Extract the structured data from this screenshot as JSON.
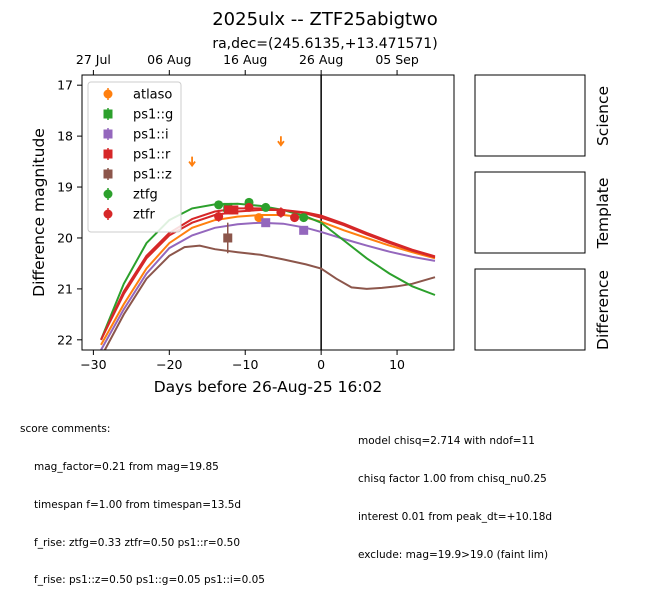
{
  "title": "2025ulx -- ZTF25abigtwo",
  "subtitle": "ra,dec=(245.6135,+13.471571)",
  "panels": {
    "science": "Science",
    "template": "Template",
    "difference": "Difference"
  },
  "chart_data": {
    "type": "scatter",
    "xlabel": "Days before 26-Aug-25 16:02",
    "ylabel": "Difference magnitude",
    "xlim": [
      -31.5,
      17.5
    ],
    "ylim": [
      22.2,
      16.8
    ],
    "y_inverted": true,
    "x_ticks": [
      -30,
      -20,
      -10,
      0,
      10
    ],
    "y_ticks": [
      17,
      18,
      19,
      20,
      21,
      22
    ],
    "top_axis_ticks": [
      {
        "label": "27 Jul",
        "x": -30
      },
      {
        "label": "06 Aug",
        "x": -20
      },
      {
        "label": "16 Aug",
        "x": -10
      },
      {
        "label": "26 Aug",
        "x": 0
      },
      {
        "label": "05 Sep",
        "x": 10
      }
    ],
    "vline_x": 0,
    "legend_position": "upper-left",
    "series": [
      {
        "name": "atlaso",
        "color": "#ff7f0e",
        "marker": "circle",
        "points": [
          {
            "x": -8.2,
            "y": 19.6,
            "err": 0.06
          }
        ],
        "upper_limits": [
          {
            "x": -17.0,
            "y": 18.5
          },
          {
            "x": -5.3,
            "y": 18.1
          }
        ],
        "model": [
          [
            -29,
            22.1
          ],
          [
            -26,
            21.3
          ],
          [
            -23,
            20.6
          ],
          [
            -20,
            20.1
          ],
          [
            -17,
            19.8
          ],
          [
            -14,
            19.65
          ],
          [
            -11,
            19.58
          ],
          [
            -8,
            19.55
          ],
          [
            -5,
            19.55
          ],
          [
            -2,
            19.6
          ],
          [
            0,
            19.68
          ],
          [
            3,
            19.85
          ],
          [
            6,
            20.0
          ],
          [
            9,
            20.15
          ],
          [
            12,
            20.28
          ],
          [
            15,
            20.4
          ]
        ]
      },
      {
        "name": "ps1::g",
        "color": "#2ca02c",
        "marker": "square",
        "points": [
          {
            "x": -12.3,
            "y": 19.4,
            "err": 0.08
          }
        ],
        "upper_limits": [],
        "model": null
      },
      {
        "name": "ps1::i",
        "color": "#9467bd",
        "marker": "square",
        "points": [
          {
            "x": -7.3,
            "y": 19.7,
            "err": 0.05
          },
          {
            "x": -2.3,
            "y": 19.85,
            "err": 0.05
          }
        ],
        "upper_limits": [],
        "model": [
          [
            -29,
            22.2
          ],
          [
            -26,
            21.4
          ],
          [
            -23,
            20.7
          ],
          [
            -20,
            20.2
          ],
          [
            -17,
            19.95
          ],
          [
            -14,
            19.8
          ],
          [
            -11,
            19.73
          ],
          [
            -8,
            19.7
          ],
          [
            -5,
            19.72
          ],
          [
            -2,
            19.8
          ],
          [
            0,
            19.88
          ],
          [
            3,
            20.02
          ],
          [
            6,
            20.15
          ],
          [
            9,
            20.27
          ],
          [
            12,
            20.37
          ],
          [
            15,
            20.45
          ]
        ]
      },
      {
        "name": "ps1::r",
        "color": "#d62728",
        "marker": "square",
        "points": [
          {
            "x": -12.2,
            "y": 19.45,
            "err": 0.07
          },
          {
            "x": -11.5,
            "y": 19.45,
            "err": 0.07
          }
        ],
        "upper_limits": [],
        "model": [
          [
            -29,
            22.0
          ],
          [
            -26,
            21.1
          ],
          [
            -23,
            20.4
          ],
          [
            -20,
            19.95
          ],
          [
            -17,
            19.7
          ],
          [
            -14,
            19.55
          ],
          [
            -11,
            19.48
          ],
          [
            -8,
            19.45
          ],
          [
            -5,
            19.45
          ],
          [
            -2,
            19.5
          ],
          [
            0,
            19.56
          ],
          [
            3,
            19.72
          ],
          [
            6,
            19.9
          ],
          [
            9,
            20.07
          ],
          [
            12,
            20.23
          ],
          [
            15,
            20.36
          ]
        ]
      },
      {
        "name": "ps1::z",
        "color": "#8c564b",
        "marker": "square",
        "points": [
          {
            "x": -12.3,
            "y": 20.0,
            "err": 0.3
          }
        ],
        "upper_limits": [],
        "model": [
          [
            -28.5,
            22.2
          ],
          [
            -26,
            21.5
          ],
          [
            -23,
            20.8
          ],
          [
            -20,
            20.35
          ],
          [
            -18,
            20.18
          ],
          [
            -16,
            20.15
          ],
          [
            -14,
            20.22
          ],
          [
            -11,
            20.28
          ],
          [
            -8,
            20.33
          ],
          [
            -5,
            20.42
          ],
          [
            -2,
            20.52
          ],
          [
            0,
            20.6
          ],
          [
            2,
            20.8
          ],
          [
            4,
            20.97
          ],
          [
            6,
            21.0
          ],
          [
            8,
            20.98
          ],
          [
            10,
            20.95
          ],
          [
            12,
            20.9
          ],
          [
            15,
            20.77
          ]
        ]
      },
      {
        "name": "ztfg",
        "color": "#2ca02c",
        "marker": "circle",
        "points": [
          {
            "x": -13.5,
            "y": 19.35,
            "err": 0.07
          },
          {
            "x": -9.5,
            "y": 19.3,
            "err": 0.07
          },
          {
            "x": -7.3,
            "y": 19.4,
            "err": 0.06
          },
          {
            "x": -2.3,
            "y": 19.6,
            "err": 0.06
          }
        ],
        "upper_limits": [],
        "model": [
          [
            -29,
            22.0
          ],
          [
            -26,
            20.9
          ],
          [
            -23,
            20.1
          ],
          [
            -20,
            19.65
          ],
          [
            -17,
            19.42
          ],
          [
            -14,
            19.34
          ],
          [
            -11,
            19.33
          ],
          [
            -8,
            19.37
          ],
          [
            -5,
            19.45
          ],
          [
            -2,
            19.58
          ],
          [
            0,
            19.7
          ],
          [
            3,
            20.05
          ],
          [
            6,
            20.4
          ],
          [
            9,
            20.7
          ],
          [
            12,
            20.95
          ],
          [
            15,
            21.12
          ]
        ]
      },
      {
        "name": "ztfr",
        "color": "#d62728",
        "marker": "circle",
        "points": [
          {
            "x": -13.5,
            "y": 19.58,
            "err": 0.1
          },
          {
            "x": -11.7,
            "y": 19.45,
            "err": 0.08
          },
          {
            "x": -9.5,
            "y": 19.4,
            "err": 0.08
          },
          {
            "x": -5.3,
            "y": 19.5,
            "err": 0.1
          },
          {
            "x": -3.5,
            "y": 19.6,
            "err": 0.08
          }
        ],
        "upper_limits": [],
        "model": [
          [
            -29,
            22.0
          ],
          [
            -26,
            21.05
          ],
          [
            -23,
            20.35
          ],
          [
            -20,
            19.9
          ],
          [
            -17,
            19.63
          ],
          [
            -14,
            19.48
          ],
          [
            -11,
            19.42
          ],
          [
            -8,
            19.42
          ],
          [
            -5,
            19.45
          ],
          [
            -2,
            19.52
          ],
          [
            0,
            19.6
          ],
          [
            3,
            19.75
          ],
          [
            6,
            19.93
          ],
          [
            9,
            20.1
          ],
          [
            12,
            20.25
          ],
          [
            15,
            20.38
          ]
        ]
      }
    ]
  },
  "comments": {
    "heading": "score comments:",
    "left": [
      "mag_factor=0.21 from mag=19.85",
      "timespan f=1.00 from timespan=13.5d",
      "f_rise: ztfg=0.33 ztfr=0.50 ps1::r=0.50",
      "f_rise: ps1::z=0.50 ps1::g=0.05 ps1::i=0.05"
    ],
    "right": [
      "model chisq=2.714 with ndof=11",
      "chisq factor 1.00 from chisq_nu0.25",
      "interest 0.01 from peak_dt=+10.18d",
      "exclude: mag=19.9>19.0 (faint lim)"
    ]
  }
}
